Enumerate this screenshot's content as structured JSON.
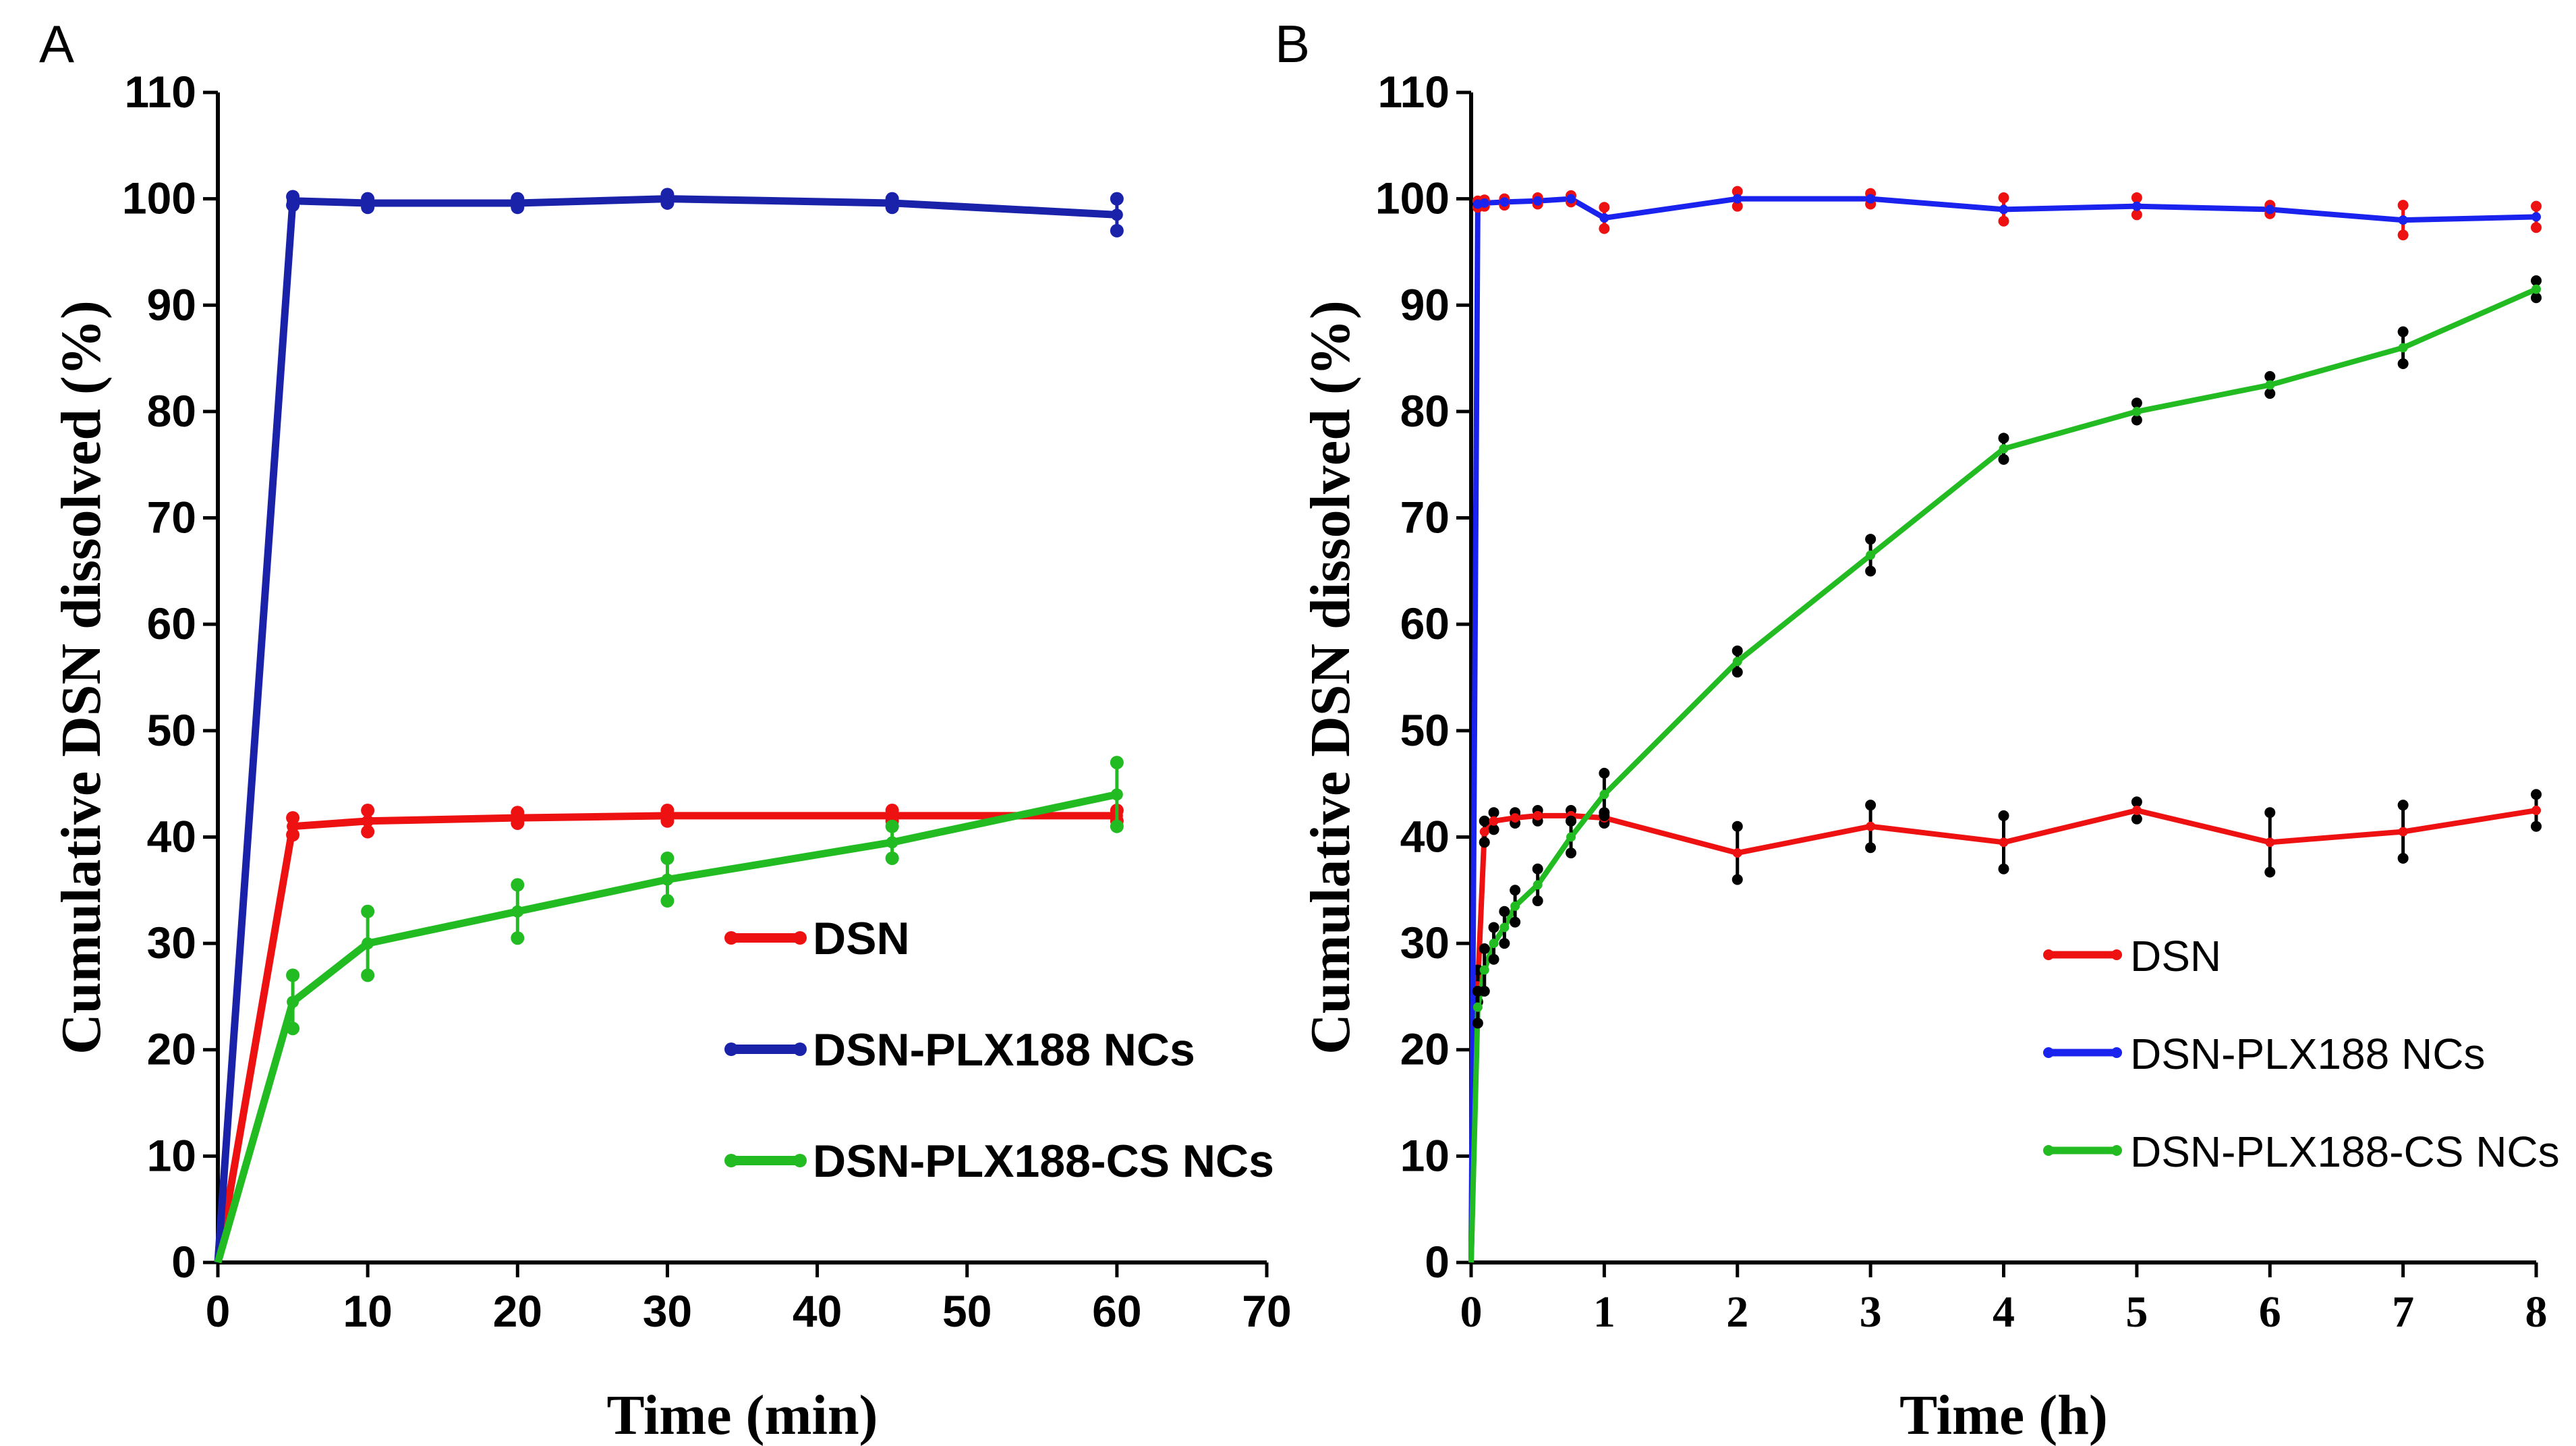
{
  "chart_data": [
    {
      "panel": "A",
      "type": "line",
      "title": "",
      "xlabel": "Time (min)",
      "ylabel": "Cumulative DSN dissolved (%)",
      "xlim": [
        0,
        70
      ],
      "ylim": [
        0,
        110
      ],
      "xticks": [
        "0",
        "10",
        "20",
        "30",
        "40",
        "50",
        "60",
        "70"
      ],
      "yticks": [
        "0",
        "10",
        "20",
        "30",
        "40",
        "50",
        "60",
        "70",
        "80",
        "90",
        "100",
        "110"
      ],
      "legend_position": "lower-right",
      "series": [
        {
          "name": "DSN",
          "color": "#ee1111",
          "x": [
            0,
            5,
            10,
            20,
            30,
            45,
            60
          ],
          "y": [
            0,
            41,
            41.5,
            41.8,
            42,
            42,
            42
          ],
          "err": [
            0,
            0.8,
            1,
            0.5,
            0.5,
            0.5,
            0.5
          ]
        },
        {
          "name": "DSN-PLX188 NCs",
          "color": "#1a22aa",
          "x": [
            0,
            5,
            10,
            20,
            30,
            45,
            60
          ],
          "y": [
            0,
            99.8,
            99.6,
            99.6,
            100,
            99.6,
            98.5
          ],
          "err": [
            0,
            0.4,
            0.4,
            0.4,
            0.4,
            0.4,
            1.5
          ]
        },
        {
          "name": "DSN-PLX188-CS NCs",
          "color": "#22bb22",
          "x": [
            0,
            5,
            10,
            20,
            30,
            45,
            60
          ],
          "y": [
            0,
            24.5,
            30,
            33,
            36,
            39.5,
            44
          ],
          "err": [
            0,
            2.5,
            3,
            2.5,
            2,
            1.5,
            3
          ]
        }
      ]
    },
    {
      "panel": "B",
      "type": "line",
      "title": "",
      "xlabel": "Time (h)",
      "ylabel": "Cumulative DSN dissolved (%)",
      "xlim": [
        0,
        8
      ],
      "ylim": [
        0,
        110
      ],
      "xticks": [
        "0",
        "1",
        "2",
        "3",
        "4",
        "5",
        "6",
        "7",
        "8"
      ],
      "yticks": [
        "0",
        "10",
        "20",
        "30",
        "40",
        "50",
        "60",
        "70",
        "80",
        "90",
        "100",
        "110"
      ],
      "legend_position": "lower-right",
      "series": [
        {
          "name": "DSN",
          "color": "#ee1111",
          "x": [
            0,
            0.05,
            0.1,
            0.17,
            0.33,
            0.5,
            0.75,
            1,
            2,
            3,
            4,
            5,
            6,
            7,
            8
          ],
          "y": [
            0,
            26,
            40.5,
            41.5,
            41.8,
            42,
            42,
            41.8,
            38.5,
            41,
            39.5,
            42.5,
            39.5,
            40.5,
            42.5
          ],
          "err": [
            0,
            1.5,
            1,
            0.8,
            0.5,
            0.5,
            0.5,
            0.5,
            2.5,
            2,
            2.5,
            0.8,
            2.8,
            2.5,
            1.5
          ],
          "err_color": "#000000"
        },
        {
          "name": "DSN-PLX188 NCs",
          "color": "#1a22ee",
          "x": [
            0,
            0.05,
            0.1,
            0.25,
            0.5,
            0.75,
            1,
            2,
            3,
            4,
            5,
            6,
            7,
            8
          ],
          "y": [
            0,
            99.5,
            99.6,
            99.7,
            99.8,
            100,
            98.2,
            100,
            100,
            99,
            99.3,
            99,
            98,
            98.3
          ],
          "err": [
            0,
            0.3,
            0.3,
            0.3,
            0.3,
            0.3,
            1,
            0.7,
            0.5,
            1.1,
            0.8,
            0.4,
            1.4,
            1
          ],
          "err_color": "#ee1111"
        },
        {
          "name": "DSN-PLX188-CS NCs",
          "color": "#22bb22",
          "x": [
            0,
            0.05,
            0.1,
            0.17,
            0.25,
            0.33,
            0.5,
            0.75,
            1,
            2,
            3,
            4,
            5,
            6,
            7,
            8
          ],
          "y": [
            0,
            24,
            27.5,
            30,
            31.5,
            33.5,
            35.5,
            40,
            44,
            56.5,
            66.5,
            76.5,
            80,
            82.5,
            86,
            91.5
          ],
          "err": [
            0,
            1.5,
            2,
            1.5,
            1.5,
            1.5,
            1.5,
            1.5,
            2,
            1,
            1.5,
            1,
            0.8,
            0.8,
            1.5,
            0.8
          ],
          "err_color": "#000000"
        }
      ]
    }
  ]
}
